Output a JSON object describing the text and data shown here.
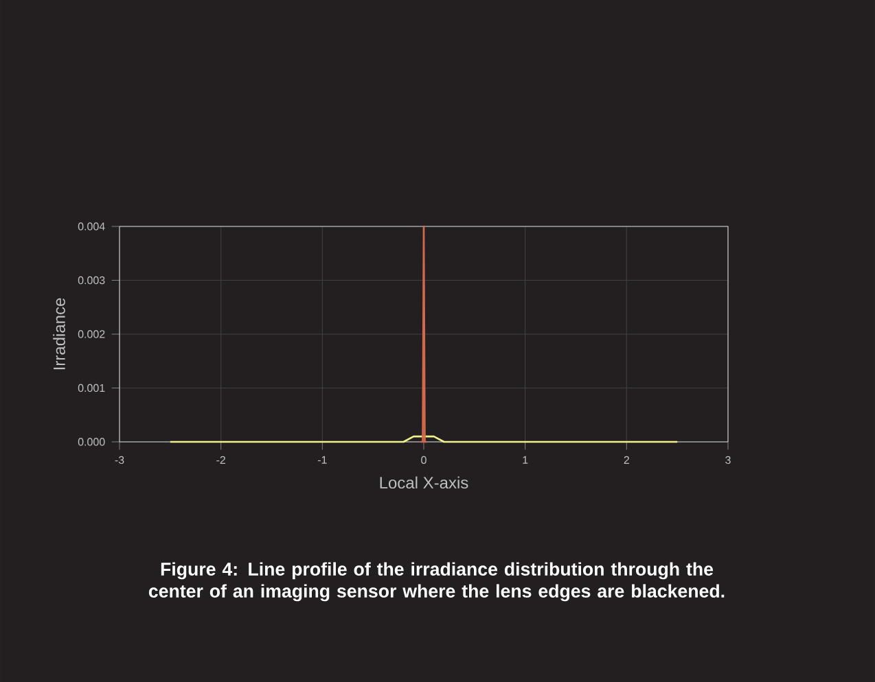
{
  "chart_data": {
    "type": "line",
    "xlabel": "Local X-axis",
    "ylabel": "Irradiance",
    "xlim": [
      -3,
      3
    ],
    "ylim": [
      0,
      0.004
    ],
    "xticks": [
      -3,
      -2,
      -1,
      0,
      1,
      2,
      3
    ],
    "yticks": [
      {
        "value": 0,
        "label": "0.000"
      },
      {
        "value": 0.001,
        "label": "0.001"
      },
      {
        "value": 0.002,
        "label": "0.002"
      },
      {
        "value": 0.003,
        "label": "0.003"
      },
      {
        "value": 0.004,
        "label": "0.004"
      }
    ],
    "grid": true,
    "series": [
      {
        "color": "#f0f08c",
        "x": [
          -2.5,
          -2,
          -1.5,
          -1,
          -0.5,
          -0.3,
          -0.2,
          -0.1,
          0,
          0.1,
          0.2,
          0.3,
          0.5,
          1,
          1.5,
          2,
          2.5
        ],
        "values": [
          0,
          0,
          0,
          0,
          0,
          0,
          0,
          0.0001,
          0.0001,
          0.0001,
          0,
          0,
          0,
          0,
          0,
          0,
          0
        ]
      },
      {
        "color": "#d2694b",
        "x": [
          -0.03,
          -0.01,
          0,
          0.01,
          0.03
        ],
        "values": [
          0,
          0,
          0.004,
          0,
          0
        ]
      }
    ],
    "annotations": [
      "Figure 4: Line profile of the irradiance distribution through the center of an imaging sensor where the lens edges are blackened."
    ]
  }
}
